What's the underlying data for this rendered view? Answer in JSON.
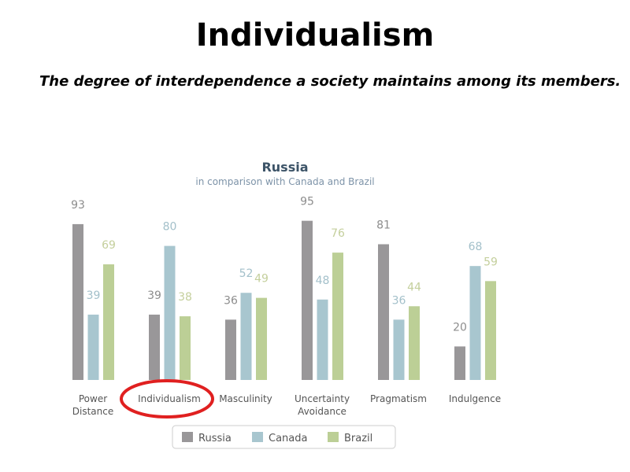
{
  "slide": {
    "title": "Individualism",
    "subtitle": "The degree of interdependence a society maintains among its members."
  },
  "chart_data": {
    "type": "bar",
    "title": "Russia",
    "subtitle": "in comparison with Canada and Brazil",
    "categories": [
      [
        "Power",
        "Distance"
      ],
      [
        "Individualism"
      ],
      [
        "Masculinity"
      ],
      [
        "Uncertainty",
        "Avoidance"
      ],
      [
        "Pragmatism"
      ],
      [
        "Indulgence"
      ]
    ],
    "series": [
      {
        "name": "Russia",
        "color": "#999799",
        "values": [
          93,
          39,
          36,
          95,
          81,
          20
        ]
      },
      {
        "name": "Canada",
        "color": "#a8c6cf",
        "values": [
          39,
          80,
          52,
          48,
          36,
          68
        ]
      },
      {
        "name": "Brazil",
        "color": "#bccf96",
        "values": [
          69,
          38,
          49,
          76,
          44,
          59
        ]
      }
    ],
    "ylim": [
      0,
      100
    ],
    "grid": false,
    "legend": "bottom",
    "highlighted_category": "Individualism",
    "highlight_color": "#e02020"
  }
}
